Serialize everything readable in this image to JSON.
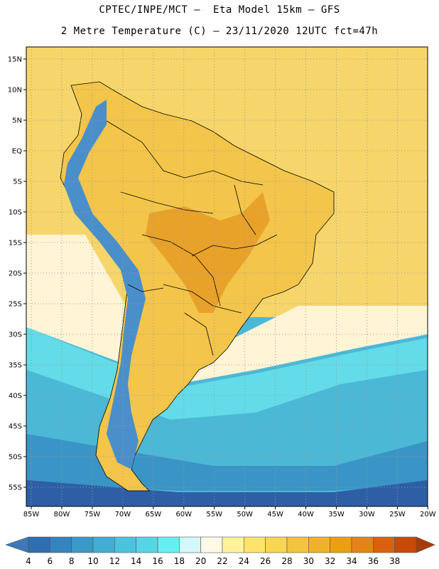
{
  "title_line1": "CPTEC/INPE/MCT –  Eta Model 15km – GFS",
  "title_line2": "2 Metre Temperature (C) – 23/11/2020 12UTC fct=47h",
  "lat_labels": [
    "15N",
    "10N",
    "5N",
    "EQ",
    "5S",
    "10S",
    "15S",
    "20S",
    "25S",
    "30S",
    "35S",
    "40S",
    "45S",
    "50S",
    "55S"
  ],
  "lon_labels": [
    "85W",
    "80W",
    "75W",
    "70W",
    "65W",
    "60W",
    "55W",
    "50W",
    "45W",
    "40W",
    "35W",
    "30W",
    "25W",
    "20W"
  ],
  "colorbar": {
    "labels": [
      "4",
      "6",
      "8",
      "10",
      "12",
      "14",
      "16",
      "18",
      "20",
      "22",
      "24",
      "26",
      "28",
      "30",
      "32",
      "34",
      "36",
      "38"
    ],
    "colors": [
      "#3e78b8",
      "#2f6fb0",
      "#3584bf",
      "#3b99c8",
      "#42aed3",
      "#4cc3dd",
      "#55d5e6",
      "#63eff2",
      "#d4f7fb",
      "#fff9e6",
      "#fff39a",
      "#ffe36b",
      "#f8d552",
      "#f3c53c",
      "#efb22a",
      "#eba010",
      "#e58317",
      "#d9610e",
      "#c84a06",
      "#a83a04"
    ],
    "min_arrow_color": "#3e78b8",
    "max_arrow_color": "#a83a04"
  },
  "palette": {
    "ocean_cold": "#2e5fa6",
    "ocean_cool": "#3a95c6",
    "ocean_mid": "#4bb8d6",
    "ocean_light": "#63dbe8",
    "ocean_warm": "#fff4d6",
    "ocean_tropical": "#f6d66a",
    "land_warm": "#f3c54a",
    "land_hot": "#e8a22a",
    "andes_cold": "#4a8fca",
    "boundary": "#000000",
    "grid": "#999999"
  }
}
